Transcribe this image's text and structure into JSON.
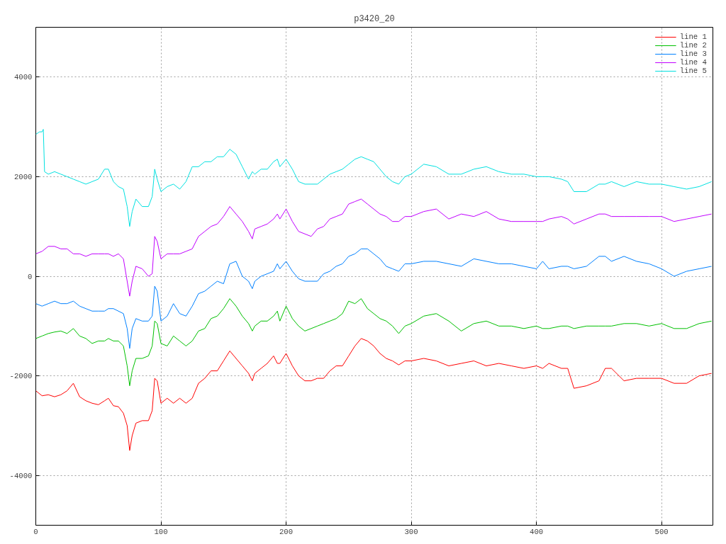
{
  "chart_data": {
    "type": "line",
    "title": "p3420_20",
    "x": [
      0,
      5,
      10,
      15,
      20,
      25,
      30,
      35,
      40,
      45,
      50,
      55,
      58,
      62,
      66,
      70,
      73,
      75,
      77,
      80,
      85,
      90,
      93,
      95,
      97,
      100,
      105,
      110,
      115,
      120,
      125,
      130,
      135,
      140,
      145,
      150,
      155,
      160,
      165,
      170,
      173,
      175,
      180,
      185,
      190,
      193,
      195,
      200,
      205,
      210,
      215,
      220,
      225,
      230,
      235,
      240,
      245,
      250,
      255,
      260,
      265,
      270,
      275,
      280,
      285,
      290,
      295,
      300,
      310,
      320,
      330,
      340,
      350,
      360,
      370,
      380,
      390,
      400,
      405,
      410,
      420,
      425,
      430,
      440,
      450,
      455,
      460,
      470,
      480,
      490,
      500,
      510,
      520,
      530,
      540
    ],
    "series": [
      {
        "name": "line 1",
        "color": "#ff0000",
        "values": [
          -2300,
          -2400,
          -2380,
          -2420,
          -2380,
          -2300,
          -2150,
          -2420,
          -2500,
          -2550,
          -2580,
          -2500,
          -2450,
          -2600,
          -2620,
          -2750,
          -3000,
          -3500,
          -3200,
          -2950,
          -2900,
          -2900,
          -2700,
          -2050,
          -2100,
          -2550,
          -2450,
          -2550,
          -2450,
          -2550,
          -2450,
          -2150,
          -2050,
          -1900,
          -1900,
          -1700,
          -1500,
          -1650,
          -1800,
          -1950,
          -2100,
          -1950,
          -1850,
          -1750,
          -1600,
          -1750,
          -1750,
          -1550,
          -1800,
          -2000,
          -2100,
          -2100,
          -2050,
          -2050,
          -1900,
          -1800,
          -1800,
          -1600,
          -1400,
          -1250,
          -1300,
          -1400,
          -1550,
          -1650,
          -1700,
          -1780,
          -1700,
          -1700,
          -1650,
          -1700,
          -1800,
          -1750,
          -1700,
          -1800,
          -1750,
          -1800,
          -1850,
          -1800,
          -1850,
          -1750,
          -1850,
          -1850,
          -2250,
          -2200,
          -2100,
          -1850,
          -1850,
          -2100,
          -2050,
          -2050,
          -2050,
          -2150,
          -2150,
          -2000,
          -1950
        ]
      },
      {
        "name": "line 2",
        "color": "#00c000",
        "values": [
          -1250,
          -1200,
          -1150,
          -1120,
          -1100,
          -1150,
          -1050,
          -1200,
          -1250,
          -1350,
          -1300,
          -1300,
          -1250,
          -1300,
          -1300,
          -1400,
          -1800,
          -2200,
          -1900,
          -1650,
          -1650,
          -1600,
          -1400,
          -900,
          -950,
          -1350,
          -1400,
          -1200,
          -1300,
          -1400,
          -1300,
          -1100,
          -1050,
          -850,
          -800,
          -650,
          -450,
          -600,
          -800,
          -950,
          -1100,
          -1000,
          -900,
          -900,
          -800,
          -700,
          -900,
          -600,
          -850,
          -1000,
          -1100,
          -1050,
          -1000,
          -950,
          -900,
          -850,
          -750,
          -500,
          -550,
          -450,
          -650,
          -750,
          -850,
          -900,
          -1000,
          -1150,
          -1000,
          -950,
          -800,
          -750,
          -900,
          -1100,
          -950,
          -900,
          -1000,
          -1000,
          -1050,
          -1000,
          -1050,
          -1050,
          -1000,
          -1000,
          -1050,
          -1000,
          -1000,
          -1000,
          -1000,
          -950,
          -950,
          -1000,
          -950,
          -1050,
          -1050,
          -950,
          -900
        ]
      },
      {
        "name": "line 3",
        "color": "#0080ff",
        "values": [
          -550,
          -600,
          -550,
          -500,
          -550,
          -550,
          -500,
          -600,
          -650,
          -700,
          -700,
          -700,
          -650,
          -650,
          -700,
          -750,
          -1050,
          -1450,
          -1050,
          -850,
          -900,
          -900,
          -800,
          -200,
          -300,
          -900,
          -800,
          -550,
          -750,
          -800,
          -600,
          -350,
          -300,
          -200,
          -100,
          -150,
          250,
          300,
          0,
          -100,
          -250,
          -100,
          0,
          50,
          100,
          250,
          150,
          300,
          100,
          -50,
          -100,
          -100,
          -100,
          50,
          100,
          200,
          250,
          400,
          450,
          550,
          550,
          450,
          350,
          200,
          150,
          100,
          250,
          250,
          300,
          300,
          250,
          200,
          350,
          300,
          250,
          250,
          200,
          150,
          300,
          150,
          200,
          200,
          150,
          200,
          400,
          400,
          300,
          400,
          300,
          250,
          150,
          0,
          100,
          150,
          200
        ]
      },
      {
        "name": "line 4",
        "color": "#c000ff",
        "values": [
          450,
          500,
          600,
          600,
          550,
          550,
          450,
          450,
          400,
          450,
          450,
          450,
          450,
          400,
          450,
          350,
          -100,
          -400,
          -100,
          200,
          150,
          0,
          50,
          800,
          700,
          350,
          450,
          450,
          450,
          500,
          550,
          800,
          900,
          1000,
          1050,
          1200,
          1400,
          1250,
          1100,
          900,
          750,
          950,
          1000,
          1050,
          1150,
          1250,
          1150,
          1350,
          1100,
          900,
          850,
          800,
          950,
          1000,
          1150,
          1200,
          1250,
          1450,
          1500,
          1550,
          1450,
          1350,
          1250,
          1200,
          1100,
          1100,
          1200,
          1200,
          1300,
          1350,
          1150,
          1250,
          1200,
          1300,
          1150,
          1100,
          1100,
          1100,
          1100,
          1150,
          1200,
          1150,
          1050,
          1150,
          1250,
          1250,
          1200,
          1200,
          1200,
          1200,
          1200,
          1100,
          1150,
          1200,
          1250
        ]
      },
      {
        "name": "line 5",
        "color": "#00e0e0",
        "x": [
          0,
          3,
          5,
          6,
          7,
          10,
          15,
          20,
          25,
          30,
          35,
          40,
          45,
          50,
          55,
          58,
          62,
          66,
          70,
          73,
          75,
          77,
          80,
          85,
          90,
          93,
          95,
          97,
          100,
          105,
          110,
          115,
          120,
          125,
          130,
          135,
          140,
          145,
          150,
          155,
          160,
          165,
          170,
          173,
          175,
          180,
          185,
          190,
          193,
          195,
          200,
          205,
          210,
          215,
          220,
          225,
          230,
          235,
          240,
          245,
          250,
          255,
          260,
          265,
          270,
          275,
          280,
          285,
          290,
          295,
          300,
          310,
          320,
          330,
          340,
          350,
          360,
          370,
          380,
          390,
          400,
          405,
          410,
          420,
          425,
          430,
          440,
          450,
          455,
          460,
          470,
          480,
          490,
          500,
          510,
          520,
          530,
          540
        ],
        "values": [
          2850,
          2900,
          2900,
          2950,
          2100,
          2050,
          2100,
          2050,
          2000,
          1950,
          1900,
          1850,
          1900,
          1950,
          2150,
          2150,
          1900,
          1800,
          1750,
          1400,
          1000,
          1300,
          1550,
          1400,
          1400,
          1600,
          2150,
          1950,
          1700,
          1800,
          1850,
          1750,
          1900,
          2200,
          2200,
          2300,
          2300,
          2400,
          2400,
          2550,
          2450,
          2200,
          1950,
          2100,
          2050,
          2150,
          2150,
          2300,
          2350,
          2200,
          2350,
          2150,
          1900,
          1850,
          1850,
          1850,
          1950,
          2050,
          2100,
          2150,
          2250,
          2350,
          2400,
          2350,
          2300,
          2150,
          2000,
          1900,
          1850,
          2000,
          2050,
          2250,
          2200,
          2050,
          2050,
          2150,
          2200,
          2100,
          2050,
          2050,
          2000,
          2000,
          2000,
          1950,
          1900,
          1700,
          1700,
          1850,
          1850,
          1900,
          1800,
          1900,
          1850,
          1850,
          1800,
          1750,
          1800,
          1900
        ]
      }
    ],
    "xlim": [
      0,
      541
    ],
    "ylim": [
      -5000,
      5000
    ],
    "xticks": [
      0,
      100,
      200,
      300,
      400,
      500
    ],
    "yticks": [
      -4000,
      -2000,
      0,
      2000,
      4000
    ],
    "grid": true,
    "legend": "top right",
    "line_style": "solid",
    "marker": "none"
  }
}
